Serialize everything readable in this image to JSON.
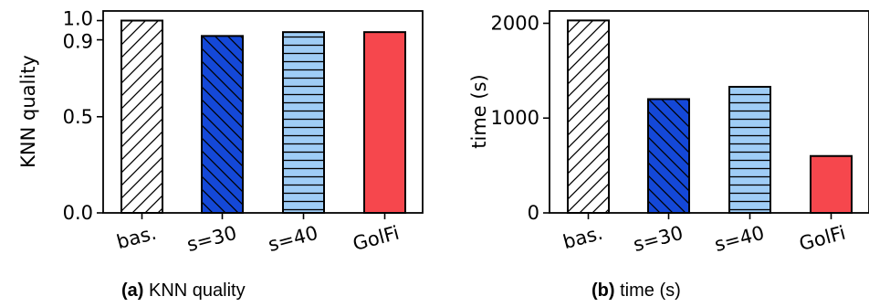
{
  "chart_data": [
    {
      "type": "bar",
      "panel": "(a)",
      "caption": "KNN quality",
      "ylabel": "KNN quality",
      "categories": [
        "bas.",
        "s=30",
        "s=40",
        "GolFi"
      ],
      "values": [
        1.0,
        0.92,
        0.94,
        0.94
      ],
      "ylim": [
        0,
        1.05
      ],
      "yticks": [
        "0.0",
        "0.5",
        "0.9",
        "1.0"
      ],
      "ytick_values": [
        0.0,
        0.5,
        0.9,
        1.0
      ]
    },
    {
      "type": "bar",
      "panel": "(b)",
      "caption": "time (s)",
      "ylabel": "time (s)",
      "categories": [
        "bas.",
        "s=30",
        "s=40",
        "GolFi"
      ],
      "values": [
        2030,
        1200,
        1330,
        600
      ],
      "ylim": [
        0,
        2130
      ],
      "yticks": [
        "0",
        "1000",
        "2000"
      ],
      "ytick_values": [
        0,
        1000,
        2000
      ]
    }
  ],
  "bar_styles": [
    {
      "fill": "#ffffff",
      "hatch": "diag-up",
      "hatch_color": "#000000"
    },
    {
      "fill": "#1448d8",
      "hatch": "diag-down",
      "hatch_color": "#000000"
    },
    {
      "fill": "#9fcdf6",
      "hatch": "horizontal",
      "hatch_color": "#000000"
    },
    {
      "fill": "#f6474d",
      "hatch": "none",
      "hatch_color": "#000000"
    }
  ]
}
